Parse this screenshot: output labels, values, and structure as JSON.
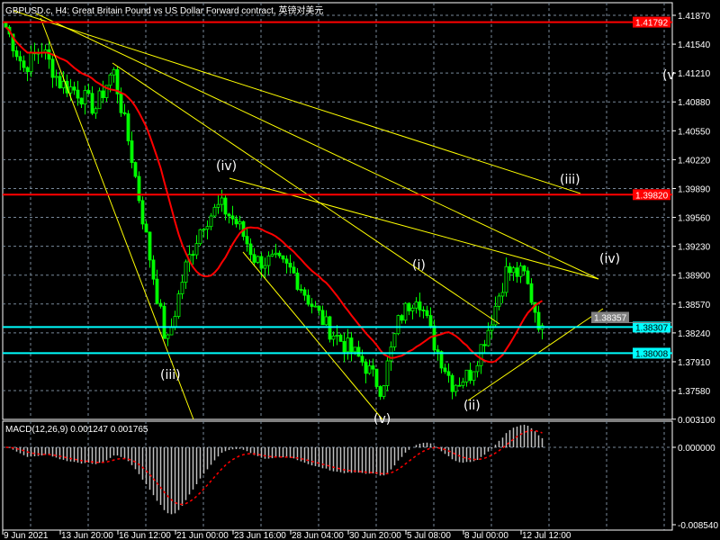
{
  "window": {
    "title": "GBPUSD.c, H4:  Great Britain Pound vs US Dollar Forward contract, 英镑对美元"
  },
  "macd": {
    "label": "MACD(12,26,9) 0.001247 0.001765",
    "axis_ticks": [
      "0.003100",
      "0.000000",
      "-0.008540"
    ],
    "ylim": [
      -0.00854,
      0.0031
    ]
  },
  "colors": {
    "background": "#000000",
    "candles": "#00ff00",
    "moving_average": "#ff0000",
    "trendlines": "#ffff00",
    "resistance_lines": "#ff0000",
    "support_lines": "#00ffff",
    "grid": "#778899",
    "macd_histogram": "#c0c0c0",
    "macd_signal": "#ff0000"
  },
  "chart_data": {
    "type": "candlestick",
    "symbol": "GBPUSD.c",
    "timeframe": "H4",
    "ylim": [
      1.373,
      1.4205
    ],
    "y_ticks": [
      "1.41870",
      "1.41540",
      "1.41210",
      "1.40880",
      "1.40550",
      "1.40220",
      "1.39890",
      "1.39560",
      "1.39230",
      "1.38900",
      "1.38570",
      "1.38240",
      "1.37910",
      "1.37580"
    ],
    "x_ticks": [
      "9 Jun 2021",
      "13 Jun 20:00",
      "16 Jun 12:00",
      "21 Jun 00:00",
      "23 Jun 16:00",
      "28 Jun 04:00",
      "30 Jun 20:00",
      "5 Jul 08:00",
      "8 Jul 00:00",
      "12 Jul 12:00"
    ],
    "grid": true,
    "approx_close_path": [
      1.41736,
      1.4127,
      1.415,
      1.411,
      1.41,
      1.408,
      1.4125,
      1.403,
      1.39164,
      1.3808,
      1.38958,
      1.395,
      1.397,
      1.39473,
      1.3906,
      1.3906,
      1.3895,
      1.386,
      1.383,
      1.381,
      1.379,
      1.376,
      1.384,
      1.387,
      1.381,
      1.3765,
      1.3778,
      1.383,
      1.3895,
      1.389,
      1.3824
    ],
    "horizontal_lines": [
      {
        "price": 1.41792,
        "label": "1.41792",
        "color": "#ff0000"
      },
      {
        "price": 1.3982,
        "label": "1.39820",
        "color": "#ff0000"
      },
      {
        "price": 1.38307,
        "label": "1.38307",
        "color": "#00ffff"
      },
      {
        "price": 1.38008,
        "label": "1.38008",
        "color": "#00ffff"
      }
    ],
    "current_price_label": "1.38357",
    "wave_labels": [
      "(iv)",
      "(iii)",
      "(v)",
      "(i)",
      "(ii)",
      "(iii)",
      "(iv)",
      "(v"
    ]
  }
}
